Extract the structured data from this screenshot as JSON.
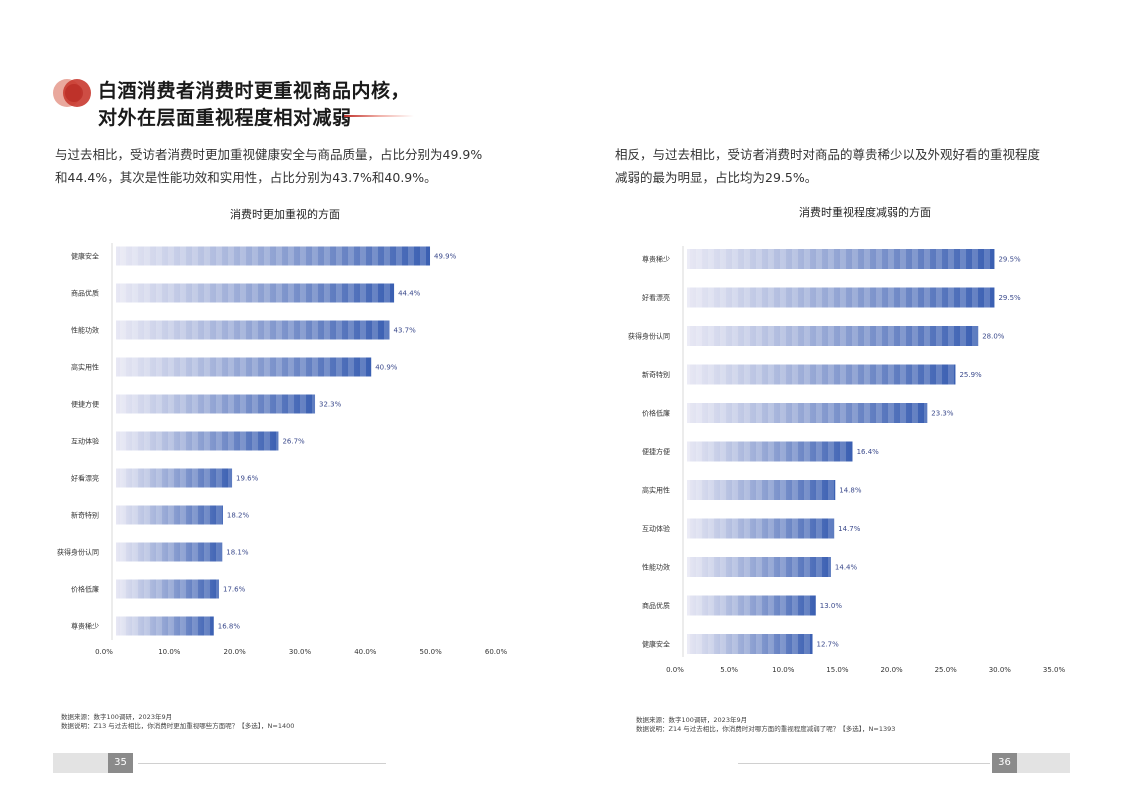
{
  "heading": {
    "line1": "白酒消费者消费时更重视商品内核，",
    "line2": "对外在层面重视程度相对减弱"
  },
  "left": {
    "paragraph_line1": "与过去相比，受访者消费时更加重视健康安全与商品质量，占比分别为49.9%",
    "paragraph_line2": "和44.4%，其次是性能功效和实用性，占比分别为43.7%和40.9%。",
    "source_line1": "数据来源：数字100调研，2023年9月",
    "source_line2": "数据说明：Z13 与过去相比，你消费时更加重视哪些方面呢？【多选】，N=1400",
    "page_number": "35"
  },
  "right": {
    "paragraph_line1": "相反，与过去相比，受访者消费时对商品的尊贵稀少以及外观好看的重视程度",
    "paragraph_line2": "减弱的最为明显，占比均为29.5%。",
    "source_line1": "数据来源：数字100调研，2023年9月",
    "source_line2": "数据说明：Z14 与过去相比，你消费时对哪方面的重视程度减弱了呢？【多选】，N=1393",
    "page_number": "36"
  },
  "colors": {
    "bar_start": "#e8e8f4",
    "bar_end": "#3a5fb2",
    "accent_red": "#c0302a",
    "value_label": "#3b4a8c"
  },
  "chart_data": [
    {
      "type": "bar",
      "orientation": "horizontal",
      "title": "消费时更加重视的方面",
      "categories": [
        "健康安全",
        "商品优质",
        "性能功效",
        "高实用性",
        "便捷方便",
        "互动体验",
        "好看漂亮",
        "新奇特别",
        "获得身份认同",
        "价格低廉",
        "尊贵稀少"
      ],
      "values": [
        49.9,
        44.4,
        43.7,
        40.9,
        32.3,
        26.7,
        19.6,
        18.2,
        18.1,
        17.6,
        16.8
      ],
      "value_labels": [
        "49.9%",
        "44.4%",
        "43.7%",
        "40.9%",
        "32.3%",
        "26.7%",
        "19.6%",
        "18.2%",
        "18.1%",
        "17.6%",
        "16.8%"
      ],
      "xlim": [
        0,
        60
      ],
      "ticks": [
        "0.0%",
        "10.0%",
        "20.0%",
        "30.0%",
        "40.0%",
        "50.0%",
        "60.0%"
      ],
      "grid": false
    },
    {
      "type": "bar",
      "orientation": "horizontal",
      "title": "消费时重视程度减弱的方面",
      "categories": [
        "尊贵稀少",
        "好看漂亮",
        "获得身份认同",
        "新奇特别",
        "价格低廉",
        "便捷方便",
        "高实用性",
        "互动体验",
        "性能功效",
        "商品优质",
        "健康安全"
      ],
      "values": [
        29.5,
        29.5,
        28.0,
        25.9,
        23.3,
        16.4,
        14.8,
        14.7,
        14.4,
        13.0,
        12.7
      ],
      "value_labels": [
        "29.5%",
        "29.5%",
        "28.0%",
        "25.9%",
        "23.3%",
        "16.4%",
        "14.8%",
        "14.7%",
        "14.4%",
        "13.0%",
        "12.7%"
      ],
      "xlim": [
        0,
        35
      ],
      "ticks": [
        "0.0%",
        "5.0%",
        "10.0%",
        "15.0%",
        "20.0%",
        "25.0%",
        "30.0%",
        "35.0%"
      ],
      "grid": false
    }
  ]
}
